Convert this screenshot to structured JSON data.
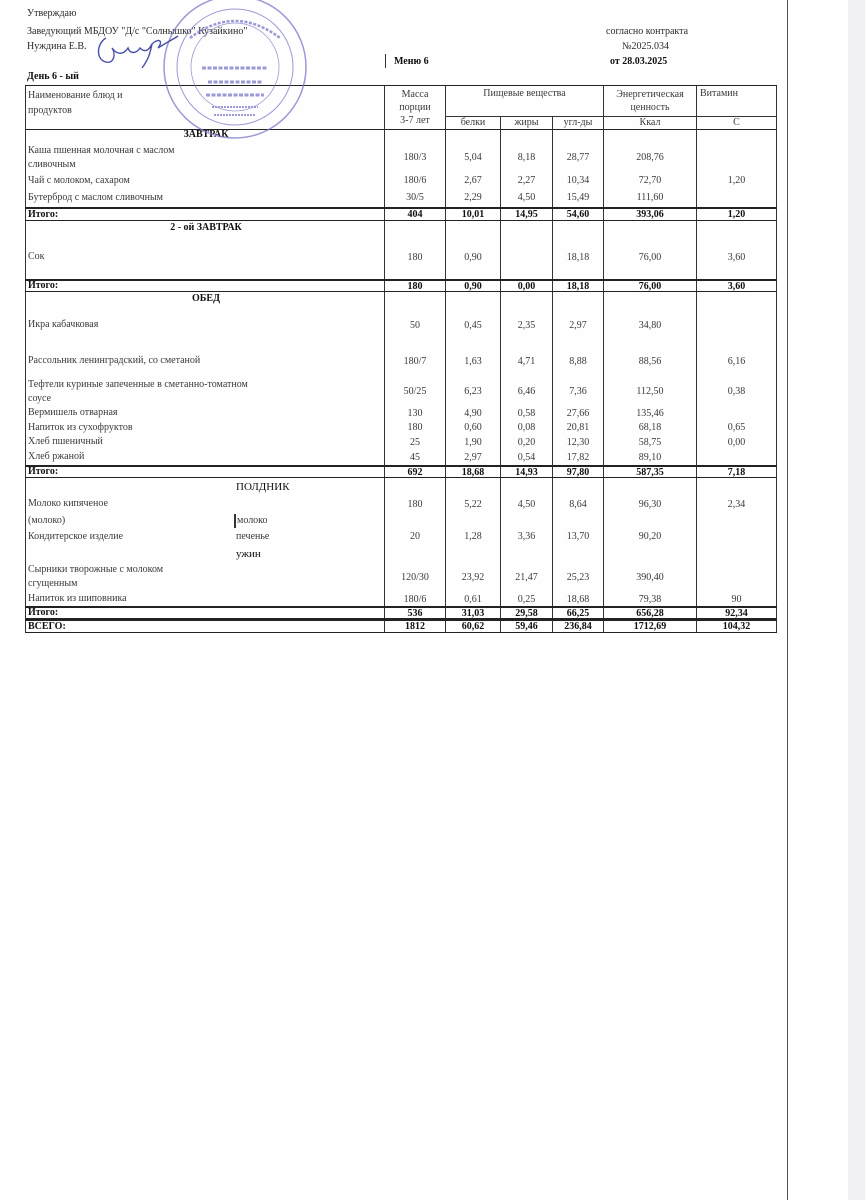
{
  "header": {
    "approve": "Утверждаю",
    "head": "Заведующий МБДОУ \"Д/с \"Солнышко\" Кузайкино\"",
    "name": "Нуждина Е.В.",
    "menu": "Меню 6",
    "contract_label": "согласно контракта",
    "contract_no": "№2025.034",
    "contract_date": "от 28.03.2025",
    "day": "День 6 - ый"
  },
  "stamp": {
    "lines": [
      "«Детский сад",
      "«Солнышко»",
      "с.Кузайкино»",
      "ИНН 1644019852",
      "КПП 164401001"
    ],
    "ring": "ОГРН 1021601632108",
    "color": "#7b78c9"
  },
  "columns": {
    "name": "Наименование блюд и продуктов",
    "mass": "Масса порции",
    "mass_age": "3-7 лет",
    "nutrients": "Пищевые   вещества",
    "protein": "белки",
    "fat": "жиры",
    "carbs": "угл-ды",
    "energy": "Энергетическая ценность",
    "kcal": "Ккал",
    "vitamin": "Витамин",
    "vit_c": "С"
  },
  "rows": [
    {
      "type": "section",
      "name": "ЗАВТРАК"
    },
    {
      "type": "item",
      "name": "Каша пшенная молочная с маслом сливочным",
      "values": [
        "180/3",
        "5,04",
        "8,18",
        "28,77",
        "208,76",
        ""
      ]
    },
    {
      "type": "item",
      "name": "Чай с молоком, сахаром",
      "values": [
        "180/6",
        "2,67",
        "2,27",
        "10,34",
        "72,70",
        "1,20"
      ]
    },
    {
      "type": "item",
      "name": "Бутерброд с маслом сливочным",
      "values": [
        "30/5",
        "2,29",
        "4,50",
        "15,49",
        "111,60",
        ""
      ]
    },
    {
      "type": "total",
      "name": "Итого:",
      "values": [
        "404",
        "10,01",
        "14,95",
        "54,60",
        "393,06",
        "1,20"
      ]
    },
    {
      "type": "section",
      "name": "2 - ой ЗАВТРАК"
    },
    {
      "type": "item",
      "name": "Сок",
      "values": [
        "180",
        "0,90",
        "",
        "18,18",
        "76,00",
        "3,60"
      ]
    },
    {
      "type": "total",
      "name": "Итого:",
      "values": [
        "180",
        "0,90",
        "0,00",
        "18,18",
        "76,00",
        "3,60"
      ]
    },
    {
      "type": "section",
      "name": "ОБЕД"
    },
    {
      "type": "item",
      "name": "Икра кабачковая",
      "values": [
        "50",
        "0,45",
        "2,35",
        "2,97",
        "34,80",
        ""
      ]
    },
    {
      "type": "item",
      "name": "Рассольник ленинградский, со сметаной",
      "values": [
        "180/7",
        "1,63",
        "4,71",
        "8,88",
        "88,56",
        "6,16"
      ]
    },
    {
      "type": "item",
      "name": "Тефтели куриные запеченные в сметанно-томатном соусе",
      "values": [
        "50/25",
        "6,23",
        "6,46",
        "7,36",
        "112,50",
        "0,38"
      ]
    },
    {
      "type": "item",
      "name": "Вермишель отварная",
      "values": [
        "130",
        "4,90",
        "0,58",
        "27,66",
        "135,46",
        ""
      ]
    },
    {
      "type": "item",
      "name": "Напиток из сухофруктов",
      "values": [
        "180",
        "0,60",
        "0,08",
        "20,81",
        "68,18",
        "0,65"
      ]
    },
    {
      "type": "item",
      "name": "Хлеб пшеничный",
      "values": [
        "25",
        "1,90",
        "0,20",
        "12,30",
        "58,75",
        "0,00"
      ]
    },
    {
      "type": "item",
      "name": "Хлеб ржаной",
      "values": [
        "45",
        "2,97",
        "0,54",
        "17,82",
        "89,10",
        ""
      ]
    },
    {
      "type": "total",
      "name": "Итого:",
      "values": [
        "692",
        "18,68",
        "14,93",
        "97,80",
        "587,35",
        "7,18"
      ]
    },
    {
      "type": "section-left",
      "name": "ПОЛДНИК"
    },
    {
      "type": "item",
      "name": "Молоко кипяченое",
      "values": [
        "180",
        "5,22",
        "4,50",
        "8,64",
        "96,30",
        "2,34"
      ]
    },
    {
      "type": "item",
      "name": "(молоко)",
      "note": "молоко",
      "values": [
        "",
        "",
        "",
        "",
        "",
        ""
      ]
    },
    {
      "type": "item",
      "name": "Кондитерское изделие",
      "note": "печенье",
      "values": [
        "20",
        "1,28",
        "3,36",
        "13,70",
        "90,20",
        ""
      ]
    },
    {
      "type": "section-left",
      "name": "ужин"
    },
    {
      "type": "item",
      "name": "Сырники творожные с молоком сгущенным",
      "values": [
        "120/30",
        "23,92",
        "21,47",
        "25,23",
        "390,40",
        ""
      ]
    },
    {
      "type": "item",
      "name": "Напиток из шиповника",
      "values": [
        "180/6",
        "0,61",
        "0,25",
        "18,68",
        "79,38",
        "90"
      ]
    },
    {
      "type": "total",
      "name": "Итого:",
      "values": [
        "536",
        "31,03",
        "29,58",
        "66,25",
        "656,28",
        "92,34"
      ]
    },
    {
      "type": "total",
      "name": "ВСЕГО:",
      "values": [
        "1812",
        "60,62",
        "59,46",
        "236,84",
        "1712,69",
        "104,32"
      ]
    }
  ]
}
